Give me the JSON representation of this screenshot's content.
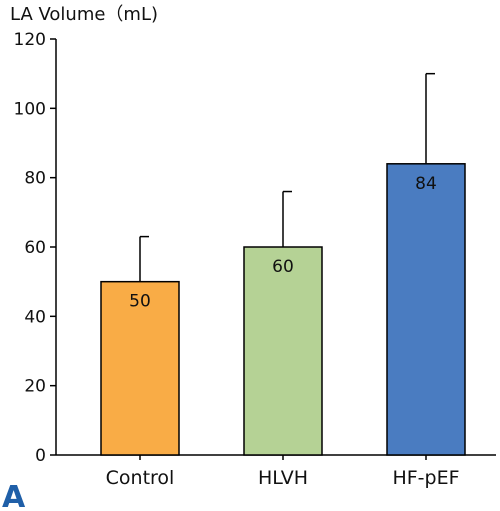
{
  "panel_label": "A",
  "colors": {
    "panel_label": "#1f5fa8",
    "axis": "#000000"
  },
  "chart_data": {
    "type": "bar",
    "title": "",
    "ylabel": "LA Volume（mL)",
    "xlabel": "",
    "categories": [
      "Control",
      "HLVH",
      "HF-pEF"
    ],
    "values": [
      50,
      60,
      84
    ],
    "error_upper": [
      63,
      76,
      110
    ],
    "data_labels": [
      "50",
      "60",
      "84"
    ],
    "bar_colors": [
      "#f9ac46",
      "#b5d295",
      "#4a7cc1"
    ],
    "ylim": [
      0,
      120
    ],
    "yticks": [
      "0",
      "20",
      "40",
      "60",
      "80",
      "100",
      "120"
    ],
    "grid": false,
    "legend": "none"
  }
}
